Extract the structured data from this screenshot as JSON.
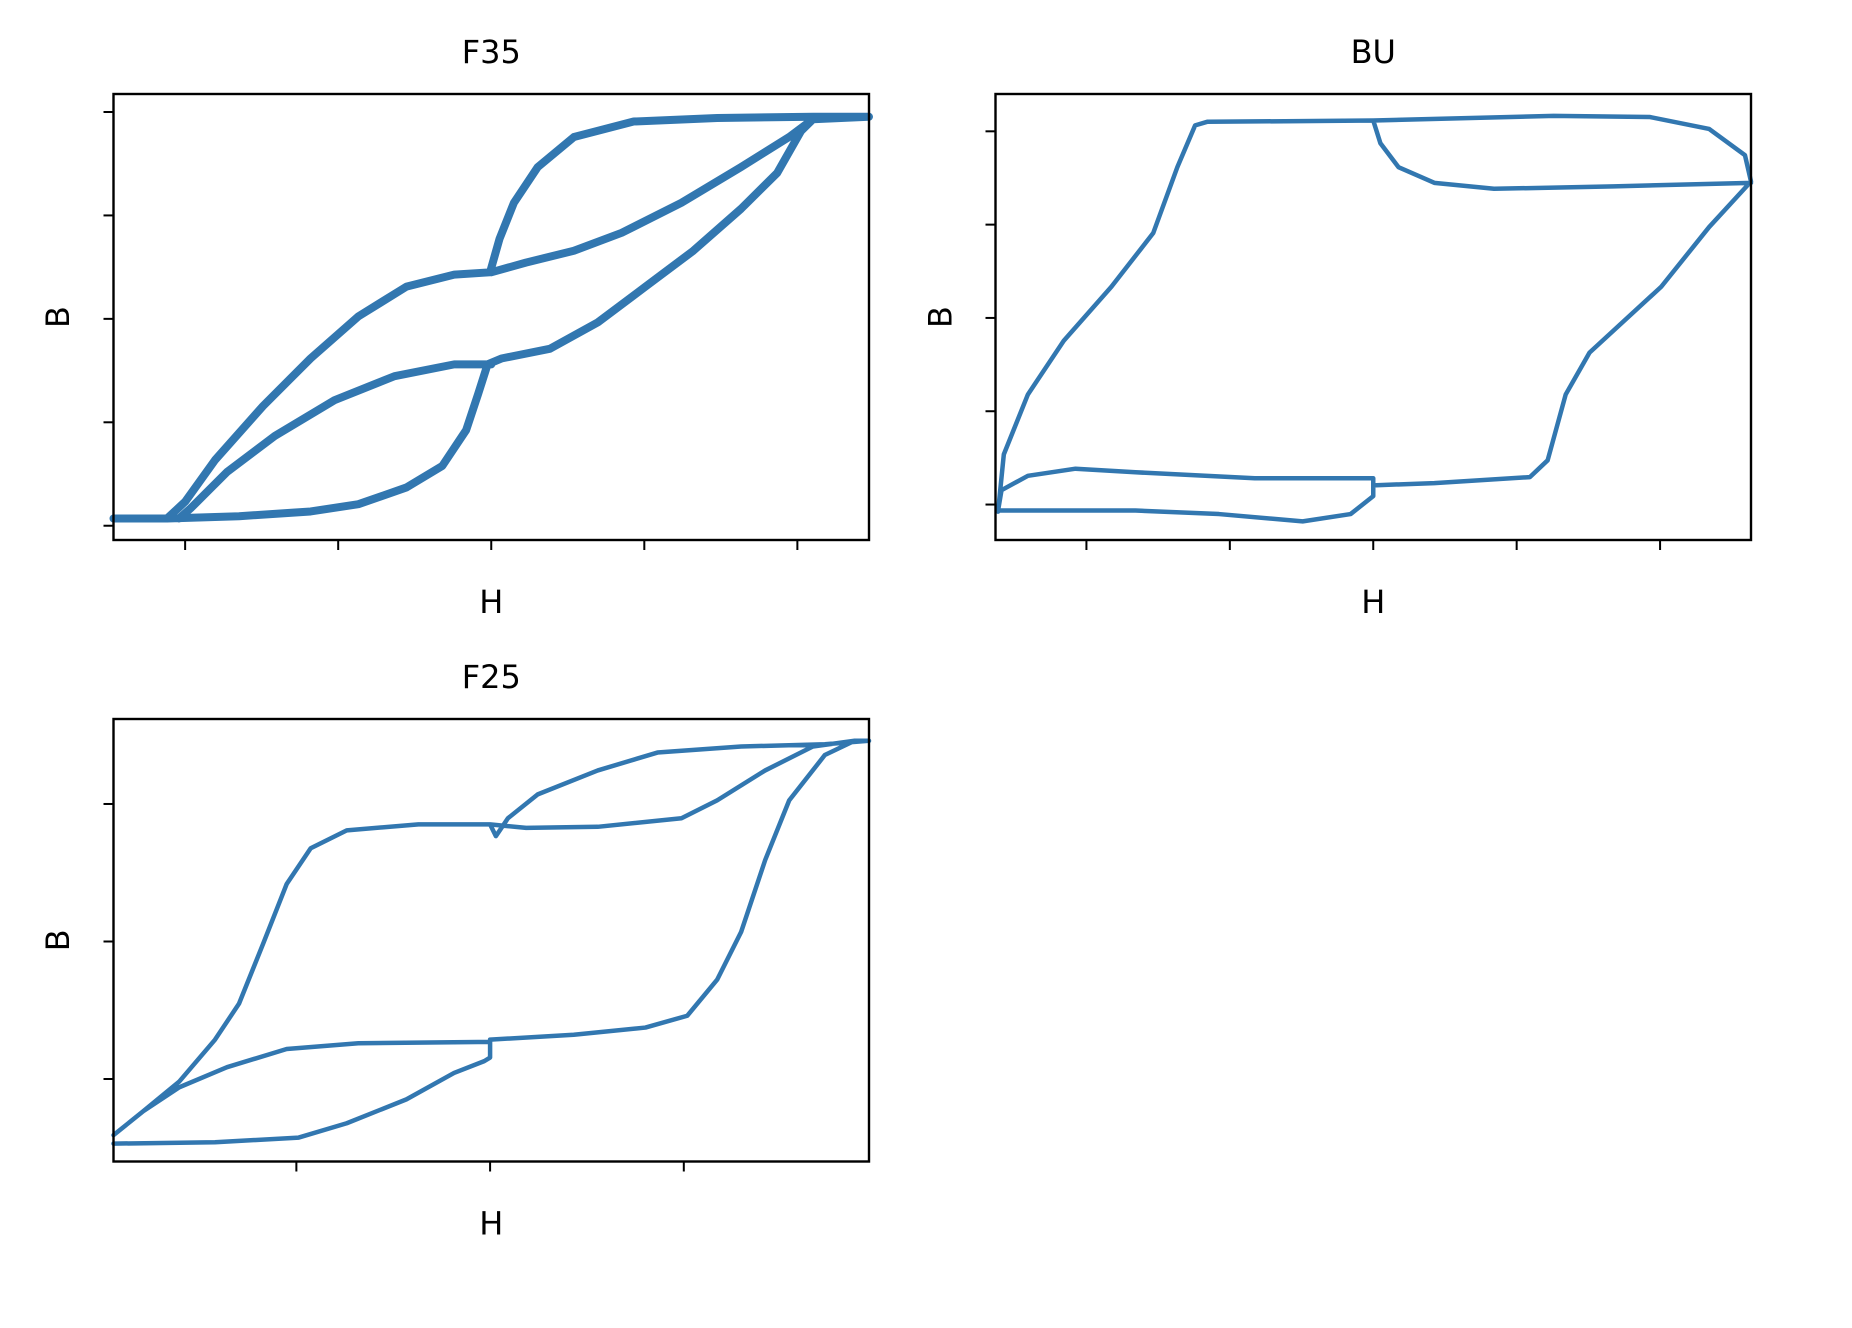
{
  "chart_data": [
    {
      "type": "line",
      "title": "F35",
      "xlabel": "H",
      "ylabel": "B",
      "color": "#3277b0",
      "xlim": [
        -1.234,
        1.234
      ],
      "ylim": [
        -1.069,
        1.087
      ],
      "xticks": [
        -1,
        -0.5,
        0,
        0.5,
        1
      ],
      "yticks": [
        -1,
        -0.5,
        0,
        0.5,
        1
      ],
      "x": [
        -1.234,
        -1.059,
        -0.824,
        -0.59,
        -0.434,
        -0.277,
        -0.16,
        -0.082,
        -0.043,
        -0.012,
        0.035,
        0.191,
        0.348,
        0.504,
        0.66,
        0.816,
        0.934,
        1.012,
        1.051,
        1.234,
        1.051,
        0.738,
        0.465,
        0.27,
        0.152,
        0.074,
        0.027,
        -0.004,
        -0.121,
        -0.277,
        -0.434,
        -0.59,
        -0.746,
        -0.902,
        -1.0,
        -1.059,
        null,
        0,
        -0.121,
        -0.316,
        -0.512,
        -0.707,
        -0.863,
        -0.98,
        -1.02,
        null,
        0,
        0.113,
        0.27,
        0.426,
        0.621,
        0.816,
        0.973,
        1.051
      ],
      "values": [
        -0.965,
        -0.965,
        -0.954,
        -0.931,
        -0.896,
        -0.815,
        -0.711,
        -0.538,
        -0.364,
        -0.22,
        -0.191,
        -0.145,
        -0.017,
        0.156,
        0.329,
        0.532,
        0.705,
        0.908,
        0.965,
        0.977,
        0.977,
        0.971,
        0.954,
        0.879,
        0.734,
        0.561,
        0.387,
        0.225,
        0.214,
        0.156,
        0.012,
        -0.191,
        -0.422,
        -0.682,
        -0.884,
        -0.965,
        null,
        -0.22,
        -0.22,
        -0.277,
        -0.393,
        -0.566,
        -0.74,
        -0.913,
        -0.965,
        null,
        0.225,
        0.272,
        0.329,
        0.416,
        0.561,
        0.734,
        0.879,
        0.965
      ]
    },
    {
      "type": "line",
      "title": "BU",
      "xlabel": "H",
      "ylabel": "B",
      "color": "#3277b0",
      "xlim": [
        -1.317,
        1.317
      ],
      "ylim": [
        -1.19,
        1.2
      ],
      "xticks": [
        -1,
        -0.5,
        0,
        0.5,
        1
      ],
      "yticks": [
        -1,
        -0.5,
        0,
        0.5,
        1
      ],
      "x": [
        -1.308,
        -1.288,
        -1.204,
        -1.079,
        -0.913,
        -0.767,
        -0.683,
        -0.621,
        -0.579,
        0,
        0.629,
        0.963,
        1.171,
        1.296,
        1.317,
        1.171,
        1.004,
        0.754,
        0.671,
        0.608,
        0.546,
        0.213,
        0,
        0,
        -0.413,
        -0.829,
        -1.038,
        -1.204,
        -1.296,
        -1.308,
        -0.829,
        -0.538,
        -0.246,
        -0.079,
        0,
        0,
        null,
        0,
        0.025,
        0.088,
        0.213,
        0.421,
        0.838,
        1.317
      ],
      "values": [
        -1.038,
        -0.731,
        -0.41,
        -0.122,
        0.167,
        0.455,
        0.808,
        1.032,
        1.051,
        1.058,
        1.083,
        1.077,
        1.013,
        0.872,
        0.731,
        0.487,
        0.167,
        -0.186,
        -0.41,
        -0.763,
        -0.853,
        -0.885,
        -0.897,
        -0.859,
        -0.859,
        -0.827,
        -0.808,
        -0.846,
        -0.923,
        -1.032,
        -1.032,
        -1.051,
        -1.09,
        -1.051,
        -0.955,
        -0.897,
        null,
        1.058,
        0.936,
        0.808,
        0.724,
        0.692,
        0.705,
        0.724
      ]
    },
    {
      "type": "line",
      "title": "F25",
      "xlabel": "H",
      "ylabel": "B",
      "color": "#3277b0",
      "xlim": [
        -0.972,
        0.978
      ],
      "ylim": [
        -0.8,
        0.809
      ],
      "xticks": [
        -0.5,
        0,
        0.5
      ],
      "yticks": [
        -0.5,
        0,
        0.5
      ],
      "x": [
        -0.972,
        -0.71,
        -0.494,
        -0.37,
        -0.216,
        -0.093,
        -0.015,
        0,
        0,
        0.216,
        0.401,
        0.509,
        0.586,
        0.648,
        0.71,
        0.772,
        0.864,
        0.941,
        0.978,
        0.864,
        0.648,
        0.432,
        0.278,
        0.123,
        0.046,
        0.015,
        0,
        -0.185,
        -0.37,
        -0.463,
        -0.525,
        -0.586,
        -0.648,
        -0.71,
        -0.802,
        -0.895,
        -0.972,
        null,
        0,
        0.093,
        0.278,
        0.494,
        0.586,
        0.71,
        0.833,
        0.941,
        null,
        0,
        -0.34,
        -0.525,
        -0.679,
        -0.802,
        -0.895
      ],
      "values": [
        -0.735,
        -0.73,
        -0.713,
        -0.661,
        -0.574,
        -0.478,
        -0.435,
        -0.422,
        -0.357,
        -0.339,
        -0.313,
        -0.27,
        -0.139,
        0.035,
        0.296,
        0.513,
        0.678,
        0.73,
        0.73,
        0.717,
        0.709,
        0.687,
        0.622,
        0.535,
        0.448,
        0.383,
        0.426,
        0.426,
        0.404,
        0.339,
        0.209,
        -0.009,
        -0.226,
        -0.357,
        -0.509,
        -0.617,
        -0.704,
        null,
        0.426,
        0.413,
        0.417,
        0.448,
        0.513,
        0.622,
        0.709,
        0.73,
        null,
        -0.365,
        -0.37,
        -0.391,
        -0.457,
        -0.53,
        -0.617
      ]
    }
  ]
}
